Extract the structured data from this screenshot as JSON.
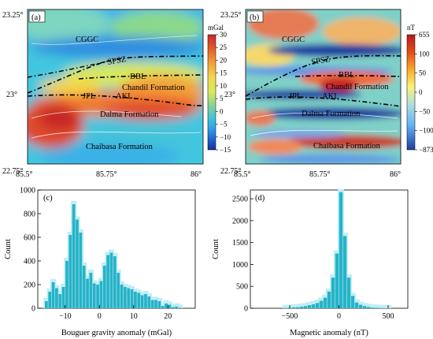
{
  "chart_data": [
    {
      "type": "heatmap",
      "panel_label": "(a)",
      "x_ticks": [
        "85.5°",
        "85.75°",
        "86°"
      ],
      "y_ticks": [
        "23.25°",
        "23°",
        "22.75°"
      ],
      "colorbar": {
        "unit": "mGal",
        "ticks": [
          "30",
          "25",
          "20",
          "15",
          "10",
          "5",
          "0",
          "−5",
          "−10",
          "−15"
        ],
        "colors": [
          "#c62828",
          "#e35b2c",
          "#f3a23a",
          "#f4d64c",
          "#d7ea5a",
          "#8fd68a",
          "#45c3d8",
          "#2f9ee8",
          "#1f5fcf",
          "#1a2f9a"
        ]
      },
      "labels": {
        "cggc": "CGGC",
        "spsz": "SPSZ",
        "bbl": "BBL",
        "chandil": "Chandil Formation",
        "jpl": "JPL",
        "akl": "AKL",
        "dalma": "Dalma Formation",
        "chaibasa": "Chaibasa Formation"
      }
    },
    {
      "type": "heatmap",
      "panel_label": "(b)",
      "x_ticks": [
        "85.5°",
        "85.75°",
        "86°"
      ],
      "y_ticks": [
        "23.25°",
        "23°",
        "22.75°"
      ],
      "colorbar": {
        "unit": "nT",
        "ticks": [
          "655",
          "100",
          "50",
          "0",
          "−50",
          "−100",
          "−873"
        ],
        "colors": [
          "#b71c1c",
          "#e64a19",
          "#f9a825",
          "#fff176",
          "#b2dfdb",
          "#64b5f6",
          "#1e3fa0"
        ]
      },
      "labels": {
        "cggc": "CGGC",
        "spsz": "SPSZ",
        "bbl": "BBL",
        "chandil": "Chandil Formation",
        "jpl": "JPL",
        "akl": "AKL",
        "dalma": "Dalma Formation",
        "chaibasa": "Chaibasa Formation"
      }
    },
    {
      "type": "bar",
      "panel_label": "(c)",
      "xlabel": "Bouguer gravity anomaly (mGal)",
      "ylabel": "Count",
      "xlim": [
        -18,
        28
      ],
      "ylim": [
        0,
        1000
      ],
      "x_ticks": [
        -10,
        0,
        10,
        20
      ],
      "y_ticks": [
        0,
        200,
        400,
        600,
        800,
        1000
      ],
      "bin_start": -16,
      "bin_width": 1,
      "values": [
        60,
        140,
        220,
        170,
        120,
        180,
        400,
        620,
        880,
        750,
        640,
        360,
        250,
        300,
        210,
        200,
        230,
        360,
        450,
        470,
        440,
        300,
        200,
        180,
        170,
        160,
        140,
        130,
        110,
        120,
        100,
        70,
        70,
        60,
        20,
        40,
        30,
        10,
        15,
        5
      ]
    },
    {
      "type": "bar",
      "panel_label": "(d)",
      "xlabel": "Magnetic anomaly (nT)",
      "ylabel": "Count",
      "xlim": [
        -900,
        700
      ],
      "ylim": [
        0,
        2700
      ],
      "x_ticks": [
        -500,
        0,
        500
      ],
      "y_ticks": [
        0,
        500,
        1000,
        1500,
        2000,
        2500
      ],
      "bin_start": -560,
      "bin_width": 40,
      "values": [
        5,
        10,
        20,
        25,
        35,
        50,
        70,
        90,
        120,
        170,
        240,
        380,
        700,
        1250,
        2650,
        1650,
        700,
        280,
        130,
        80,
        50,
        30,
        15,
        10,
        5,
        3,
        2
      ]
    }
  ]
}
